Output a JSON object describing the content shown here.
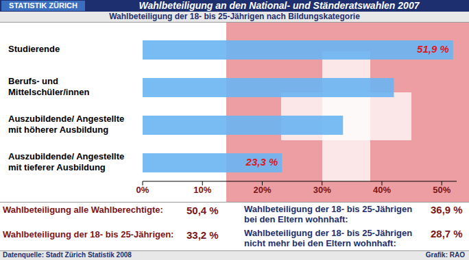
{
  "header": {
    "logo": "STATISTIK ZÜRICH"
  },
  "chart_data": {
    "type": "bar",
    "orientation": "horizontal",
    "title": "Wahlbeteiligung an den National- und Ständeratswahlen 2007",
    "subtitle": "Wahlbeteiligung der 18- bis 25-Jährigen nach Bildungskategorie",
    "categories": [
      "Studierende",
      "Berufs- und\nMittelschüler/innen",
      "Auszubildende/ Angestellte\nmit höherer Ausbildung",
      "Auszubildende/ Angestellte\nmit tieferer Ausbildung"
    ],
    "values": [
      51.9,
      42,
      33.5,
      23.3
    ],
    "data_labels": true,
    "value_labels": [
      "51,9 %",
      null,
      null,
      "23,3 %"
    ],
    "color": "#6ab4f2",
    "xlim": [
      0,
      52.5
    ],
    "xticks": [
      {
        "value": 0,
        "label": "0%"
      },
      {
        "value": 10,
        "label": "10%"
      },
      {
        "value": 20,
        "label": "20%"
      },
      {
        "value": 30,
        "label": "30%"
      },
      {
        "value": 40,
        "label": "40%"
      },
      {
        "value": 50,
        "label": "50%"
      }
    ],
    "grid": false
  },
  "footer": {
    "stats": [
      {
        "label": "Wahlbeteiligung alle Wahlberechtigte:",
        "value": "50,4 %"
      },
      {
        "label": "Wahlbeteiligung der 18- bis 25-Jährigen:",
        "value": "33,2 %"
      },
      {
        "label": "Wahlbeteiligung der 18- bis 25-Jährigen\nbei den Eltern wohnhaft:",
        "value": "36,9 %"
      },
      {
        "label": "Wahlbeteiligung der 18- bis 25-Jährigen\nnicht mehr bei den Eltern wohnhaft:",
        "value": "28,7 %"
      }
    ],
    "source": "Datenquelle: Stadt Zürich Statistik 2008",
    "credit": "Grafik: RAO"
  }
}
